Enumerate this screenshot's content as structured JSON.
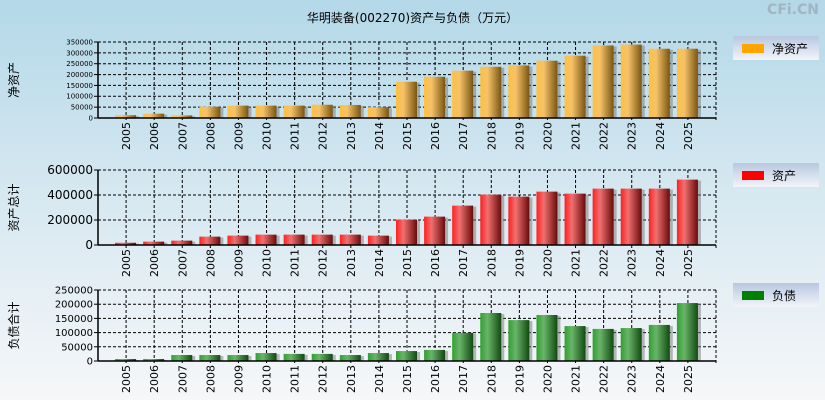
{
  "title": "华明装备(002270)资产与负债（万元）",
  "watermark": "CFi.CN",
  "colors": {
    "net": "#ffa500",
    "asset": "#ff0000",
    "debt": "#008000"
  },
  "chart_data": [
    {
      "type": "bar",
      "ylabel": "净资产",
      "legend": "净资产",
      "legend_position": "right",
      "grid": true,
      "ylim": [
        0,
        350000
      ],
      "yticks": [
        0,
        50000,
        100000,
        150000,
        200000,
        250000,
        300000,
        350000
      ],
      "categories": [
        "2005",
        "2006",
        "2007",
        "2008",
        "2009",
        "2010",
        "2011",
        "2012",
        "2013",
        "2014",
        "2015",
        "2016",
        "2017",
        "2018",
        "2019",
        "2020",
        "2021",
        "2022",
        "2023",
        "2024",
        "2025"
      ],
      "values": [
        13000,
        20000,
        12000,
        52000,
        57000,
        57000,
        57000,
        61000,
        60000,
        50000,
        167000,
        190000,
        218000,
        236000,
        242000,
        264000,
        287000,
        334000,
        338000,
        319000,
        319000
      ]
    },
    {
      "type": "bar",
      "ylabel": "资产总计",
      "legend": "资产",
      "legend_position": "right",
      "grid": true,
      "ylim": [
        0,
        600000
      ],
      "yticks": [
        0,
        200000,
        400000,
        600000
      ],
      "categories": [
        "2005",
        "2006",
        "2007",
        "2008",
        "2009",
        "2010",
        "2011",
        "2012",
        "2013",
        "2014",
        "2015",
        "2016",
        "2017",
        "2018",
        "2019",
        "2020",
        "2021",
        "2022",
        "2023",
        "2024",
        "2025"
      ],
      "values": [
        18000,
        27000,
        35000,
        67000,
        75000,
        83000,
        83000,
        83000,
        83000,
        75000,
        203000,
        227000,
        315000,
        403000,
        387000,
        427000,
        411000,
        451000,
        451000,
        451000,
        523000
      ]
    },
    {
      "type": "bar",
      "ylabel": "负债合计",
      "legend": "负债",
      "legend_position": "right",
      "grid": true,
      "ylim": [
        0,
        250000
      ],
      "yticks": [
        0,
        50000,
        100000,
        150000,
        200000,
        250000
      ],
      "categories": [
        "2005",
        "2006",
        "2007",
        "2008",
        "2009",
        "2010",
        "2011",
        "2012",
        "2013",
        "2014",
        "2015",
        "2016",
        "2017",
        "2018",
        "2019",
        "2020",
        "2021",
        "2022",
        "2023",
        "2024",
        "2025"
      ],
      "values": [
        7000,
        7000,
        21000,
        21000,
        21000,
        28000,
        25000,
        25000,
        21000,
        28000,
        35000,
        39000,
        99000,
        169000,
        144000,
        162000,
        123000,
        113000,
        116000,
        127000,
        204000
      ]
    }
  ]
}
